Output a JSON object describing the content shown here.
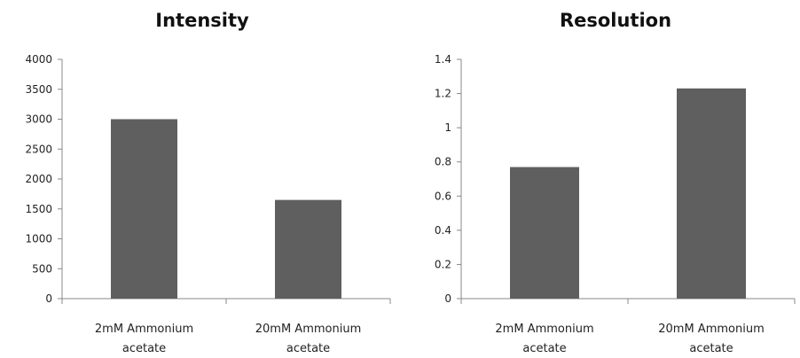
{
  "chart_data": [
    {
      "type": "bar",
      "title": "Intensity",
      "categories": [
        [
          "2mM Ammonium",
          "acetate"
        ],
        [
          "20mM Ammonium",
          "acetate"
        ]
      ],
      "values": [
        3000,
        1650
      ],
      "ylim": [
        0,
        4000
      ],
      "yticks": [
        "0",
        "500",
        "1000",
        "1500",
        "2000",
        "2500",
        "3000",
        "3500",
        "4000"
      ],
      "grid": false,
      "bar_color": "#5f5f5f"
    },
    {
      "type": "bar",
      "title": "Resolution",
      "categories": [
        [
          "2mM Ammonium",
          "acetate"
        ],
        [
          "20mM Ammonium",
          "acetate"
        ]
      ],
      "values": [
        0.77,
        1.23
      ],
      "ylim": [
        0,
        1.4
      ],
      "yticks": [
        "0",
        "0.2",
        "0.4",
        "0.6",
        "0.8",
        "1",
        "1.2",
        "1.4"
      ],
      "grid": false,
      "bar_color": "#5f5f5f"
    }
  ]
}
